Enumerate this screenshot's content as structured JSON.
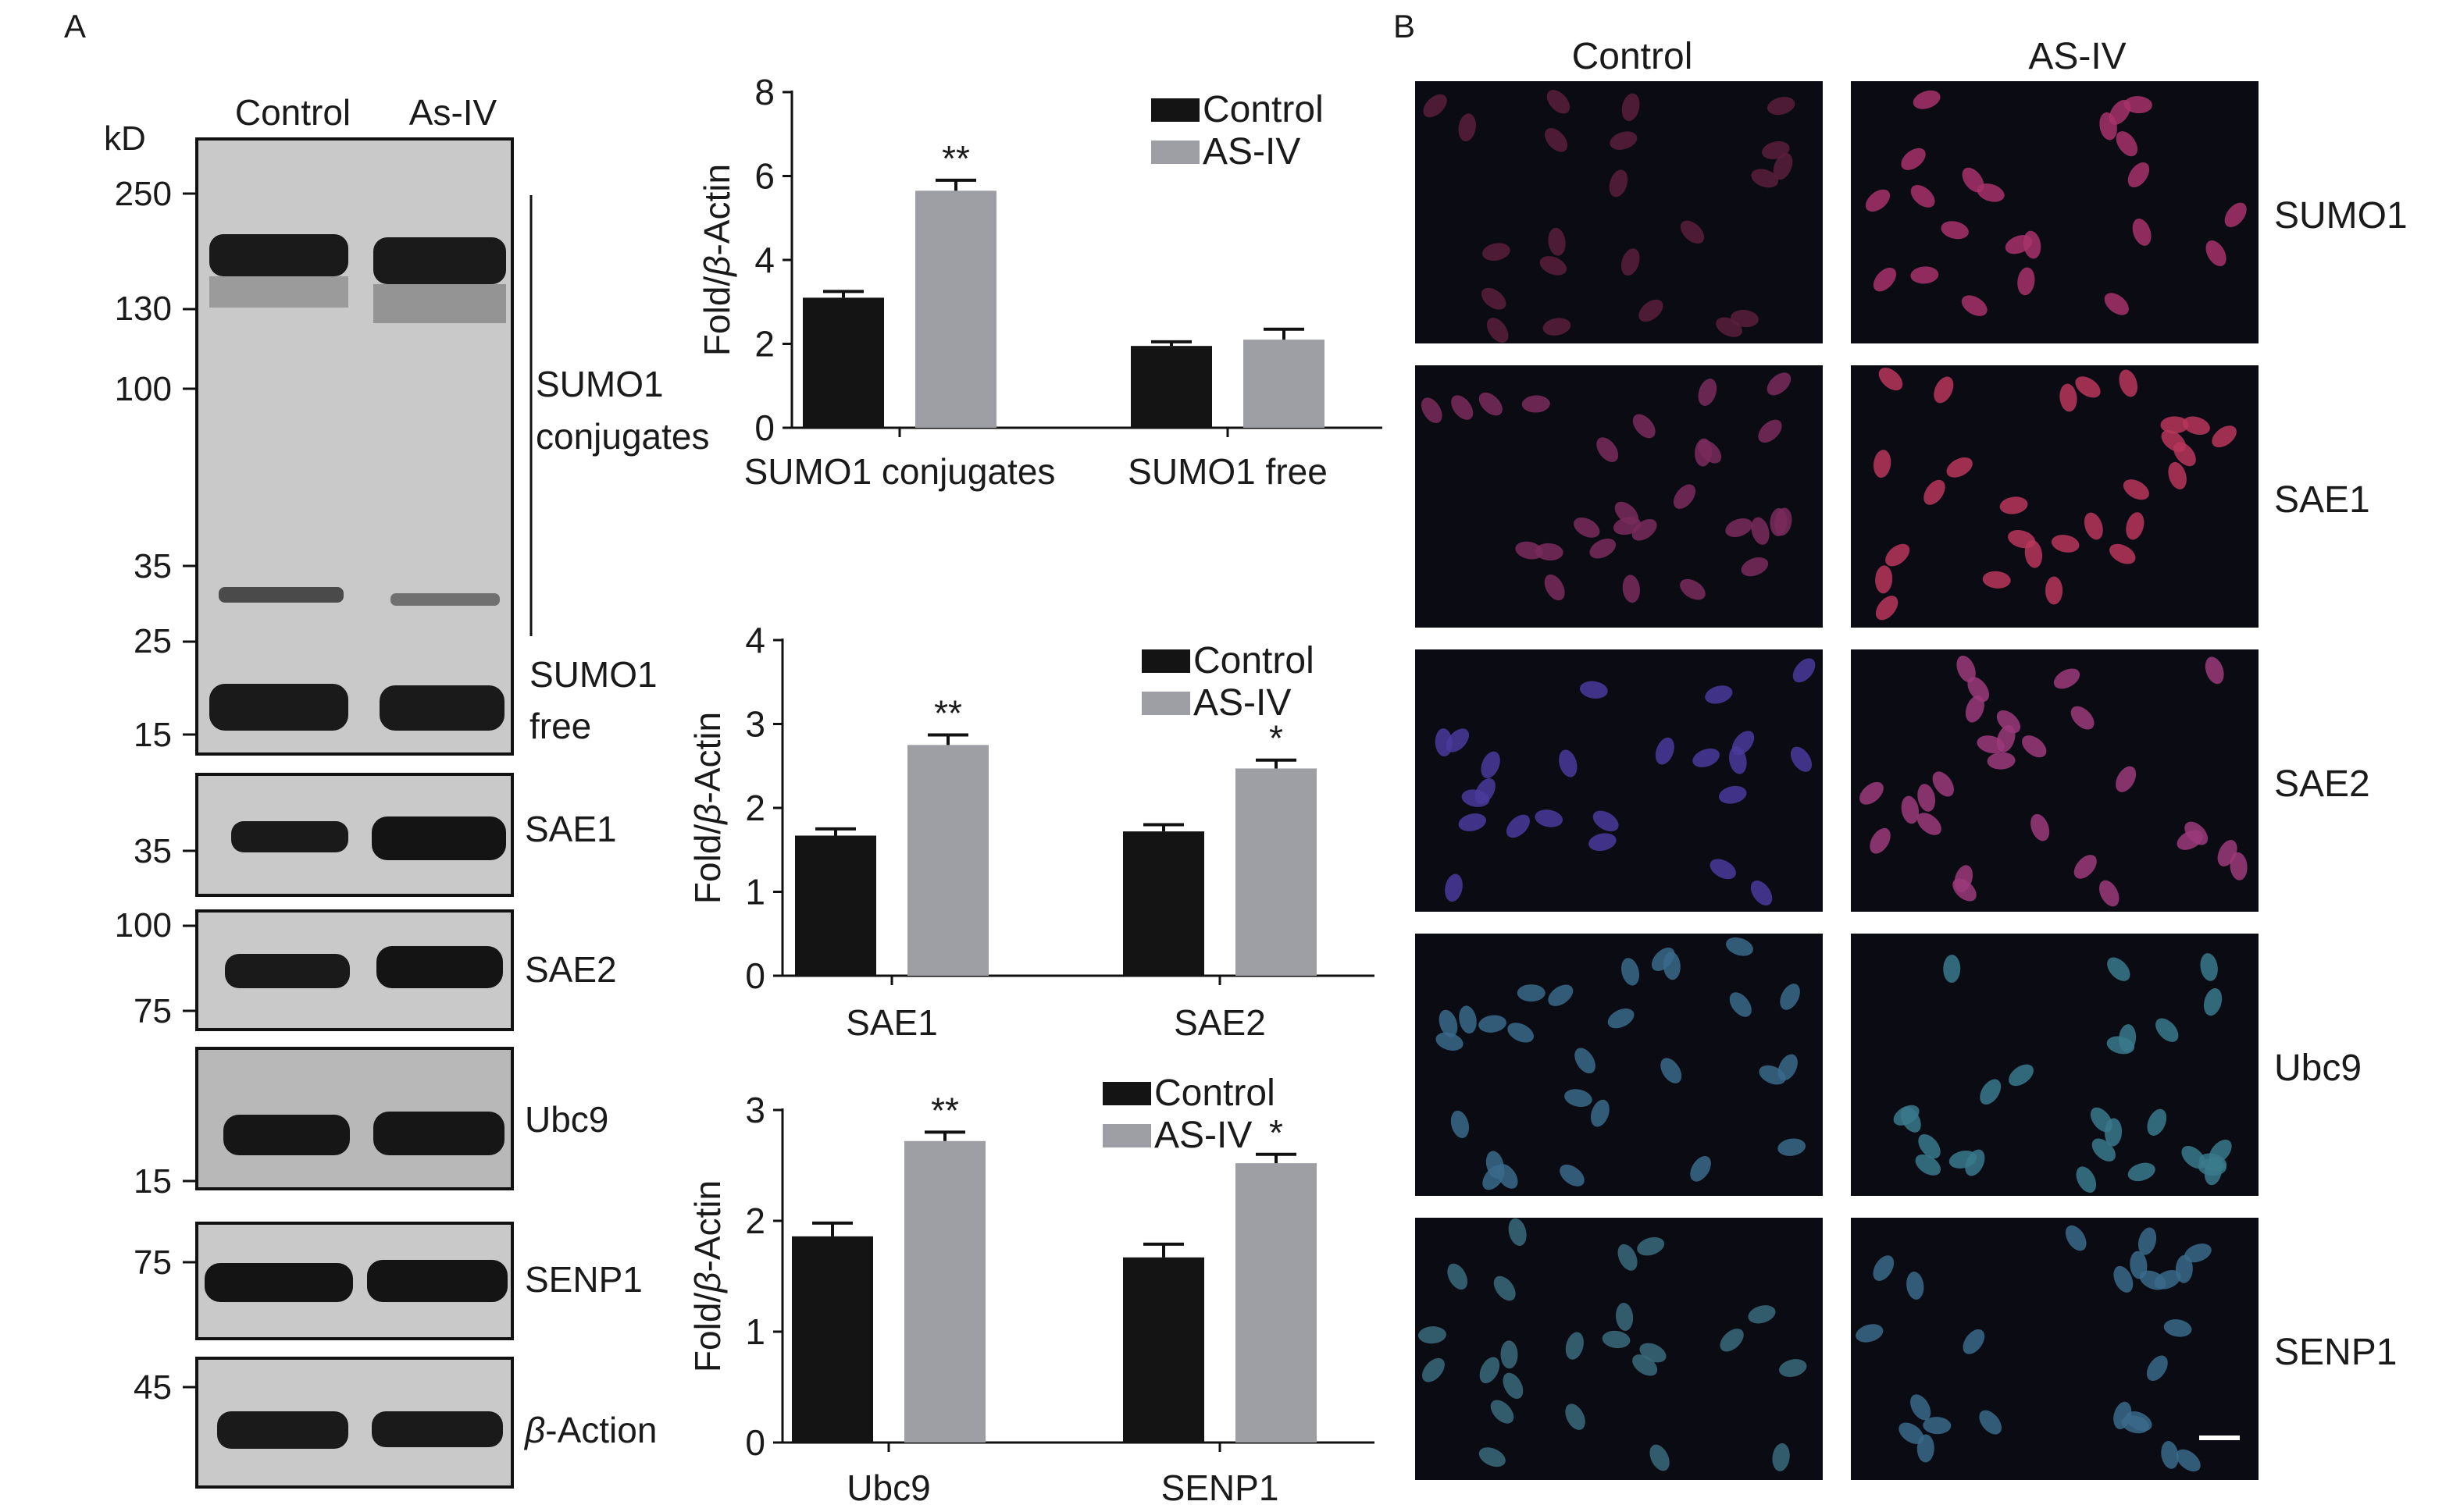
{
  "panel_a_label": "A",
  "panel_b_label": "B",
  "western": {
    "lane_labels": [
      "Control",
      "As-IV"
    ],
    "kd_label": "kD",
    "main_ladder": [
      "250",
      "130",
      "100",
      "35",
      "25",
      "15"
    ],
    "conjugates_label": [
      "SUMO1",
      "conjugates"
    ],
    "free_label": [
      "SUMO1",
      "free"
    ],
    "strips": [
      {
        "name": "SAE1",
        "ladder": [
          "35"
        ]
      },
      {
        "name": "SAE2",
        "ladder": [
          "100",
          "75"
        ]
      },
      {
        "name": "Ubc9",
        "ladder": [
          "15"
        ]
      },
      {
        "name": "SENP1",
        "ladder": [
          "75"
        ]
      },
      {
        "name": "β-Action",
        "ladder": [
          "45"
        ],
        "italic_prefix": "β",
        "suffix": "-Action"
      }
    ]
  },
  "chart_data": [
    {
      "type": "bar",
      "categories": [
        "SUMO1 conjugates",
        "SUMO1 free"
      ],
      "series": [
        {
          "name": "Control",
          "values": [
            3.1,
            1.95
          ],
          "errors": [
            0.15,
            0.1
          ]
        },
        {
          "name": "AS-IV",
          "values": [
            5.65,
            2.1
          ],
          "errors": [
            0.25,
            0.25
          ]
        }
      ],
      "significance": [
        [
          "",
          ""
        ],
        [
          "**",
          ""
        ]
      ],
      "ylabel": "Fold/β-Actin",
      "ylim": [
        0,
        8
      ],
      "yticks": [
        0,
        2,
        4,
        6,
        8
      ],
      "legend_position": "top-right",
      "colors": [
        "#141414",
        "#9d9fa4"
      ]
    },
    {
      "type": "bar",
      "categories": [
        "SAE1",
        "SAE2"
      ],
      "series": [
        {
          "name": "Control",
          "values": [
            1.67,
            1.72
          ],
          "errors": [
            0.08,
            0.08
          ]
        },
        {
          "name": "AS-IV",
          "values": [
            2.75,
            2.47
          ],
          "errors": [
            0.12,
            0.1
          ]
        }
      ],
      "significance": [
        [
          "",
          ""
        ],
        [
          "**",
          "*"
        ]
      ],
      "ylabel": "Fold/β-Actin",
      "ylim": [
        0,
        4
      ],
      "yticks": [
        0,
        1,
        2,
        3,
        4
      ],
      "legend_position": "top-right",
      "colors": [
        "#141414",
        "#9d9fa4"
      ]
    },
    {
      "type": "bar",
      "categories": [
        "Ubc9",
        "SENP1"
      ],
      "series": [
        {
          "name": "Control",
          "values": [
            1.86,
            1.67
          ],
          "errors": [
            0.12,
            0.12
          ]
        },
        {
          "name": "AS-IV",
          "values": [
            2.72,
            2.52
          ],
          "errors": [
            0.08,
            0.08
          ]
        }
      ],
      "significance": [
        [
          "",
          ""
        ],
        [
          "**",
          "*"
        ]
      ],
      "ylabel": "Fold/β-Actin",
      "ylim": [
        0,
        3
      ],
      "yticks": [
        0,
        1,
        2,
        3
      ],
      "legend_position": "top-right",
      "colors": [
        "#141414",
        "#9d9fa4"
      ]
    }
  ],
  "if": {
    "columns": [
      "Control",
      "AS-IV"
    ],
    "rows": [
      {
        "label": "SUMO1",
        "tint": [
          "#5a1f3c",
          "#a8336a"
        ]
      },
      {
        "label": "SAE1",
        "tint": [
          "#7a2b5c",
          "#b8365a"
        ]
      },
      {
        "label": "SAE2",
        "tint": [
          "#4a3a9a",
          "#9c3a7a"
        ]
      },
      {
        "label": "Ubc9",
        "tint": [
          "#3a6a8a",
          "#3a7a8c"
        ]
      },
      {
        "label": "SENP1",
        "tint": [
          "#3a6a7a",
          "#3a6a8a"
        ]
      }
    ]
  }
}
